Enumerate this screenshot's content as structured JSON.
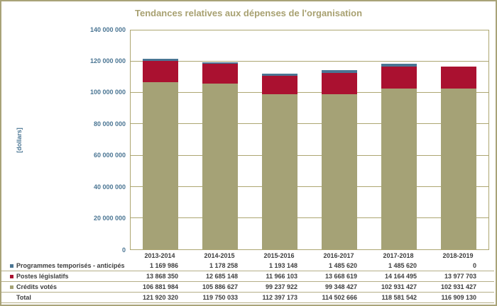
{
  "colors": {
    "frame": "#a9a378",
    "plot_border": "#ada671",
    "gridline": "#ada671",
    "title_text": "#a8a171",
    "axis_text": "#4a7593",
    "table_text": "#3d3d3d",
    "table_line": "#b5ae87"
  },
  "y_axis": {
    "unit_label": "[dollars]",
    "ticks": [
      {
        "value": 0,
        "label": "0"
      },
      {
        "value": 20000000,
        "label": "20 000 000"
      },
      {
        "value": 40000000,
        "label": "40 000 000"
      },
      {
        "value": 60000000,
        "label": "60 000 000"
      },
      {
        "value": 80000000,
        "label": "80 000 000"
      },
      {
        "value": 100000000,
        "label": "100 000 000"
      },
      {
        "value": 120000000,
        "label": "120 000 000"
      },
      {
        "value": 140000000,
        "label": "140 000 000"
      }
    ]
  },
  "chart_data": {
    "type": "bar",
    "stacked": true,
    "title": "Tendances relatives aux dépenses de l'organisation",
    "ylabel": "[dollars]",
    "ylim": [
      0,
      140000000
    ],
    "grid": true,
    "legend_position": "table-left",
    "categories": [
      "2013-2014",
      "2014-2015",
      "2015-2016",
      "2016-2017",
      "2017-2018",
      "2018-2019"
    ],
    "series": [
      {
        "name": "Programmes temporisés - anticipés",
        "color": "#4a7593",
        "values": [
          1169986,
          1178258,
          1193148,
          1485620,
          1485620,
          0
        ],
        "formatted": [
          "1 169 986",
          "1 178 258",
          "1 193 148",
          "1 485 620",
          "1 485 620",
          "0"
        ]
      },
      {
        "name": "Postes législatifs",
        "color": "#aa1130",
        "values": [
          13868350,
          12685148,
          11966103,
          13668619,
          14164495,
          13977703
        ],
        "formatted": [
          "13 868 350",
          "12 685 148",
          "11 966 103",
          "13 668 619",
          "14 164 495",
          "13 977 703"
        ]
      },
      {
        "name": "Crédits votés",
        "color": "#a5a276",
        "values": [
          106881984,
          105886627,
          99237922,
          99348427,
          102931427,
          102931427
        ],
        "formatted": [
          "106 881 984",
          "105 886 627",
          "99 237 922",
          "99 348 427",
          "102 931 427",
          "102 931 427"
        ]
      }
    ],
    "stack_order_bottom_to_top": [
      "Crédits votés",
      "Postes législatifs",
      "Programmes temporisés - anticipés"
    ],
    "total": {
      "name": "Total",
      "values": [
        121920320,
        119750033,
        112397173,
        114502666,
        118581542,
        116909130
      ],
      "formatted": [
        "121 920 320",
        "119 750 033",
        "112 397 173",
        "114 502 666",
        "118 581 542",
        "116 909 130"
      ]
    }
  }
}
